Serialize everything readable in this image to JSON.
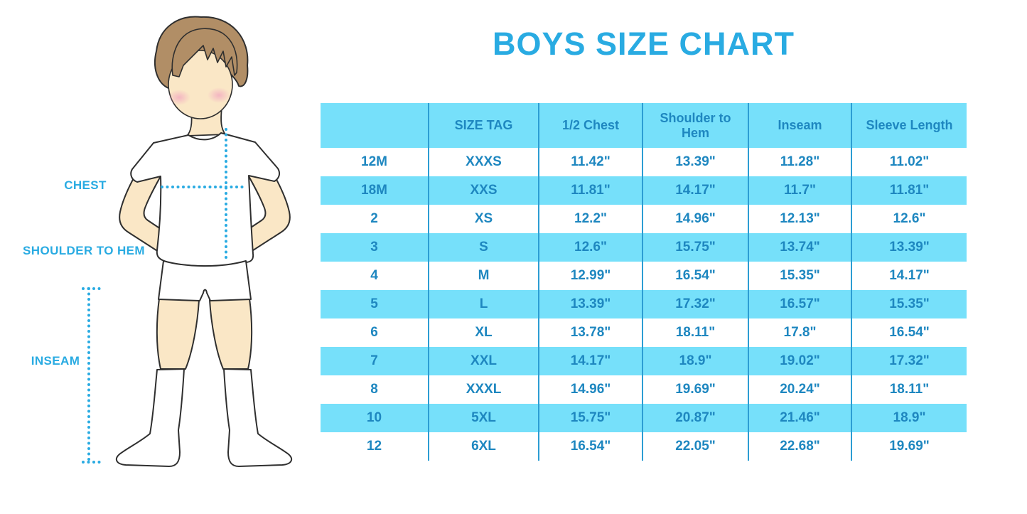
{
  "title": "BOYS SIZE CHART",
  "figure": {
    "description": "outlined illustration of a boy in white t-shirt, shorts and knee socks with dotted measurement guides",
    "labels": {
      "chest": "CHEST",
      "shoulder_to_hem": "SHOULDER TO HEM",
      "inseam": "INSEAM"
    }
  },
  "colors": {
    "title_blue": "#29ABE2",
    "band_blue": "#76E0FA",
    "divider_blue": "#2C9DD3",
    "table_text_blue": "#1E87C0",
    "dotted_line_blue": "#29ABE2",
    "skin": "#FAE7C6",
    "hair_brown": "#B18E66"
  },
  "chart_data": {
    "type": "table",
    "title": "BOYS SIZE CHART",
    "columns": [
      "",
      "SIZE TAG",
      "1/2 Chest",
      "Shoulder to Hem",
      "Inseam",
      "Sleeve Length"
    ],
    "rows": [
      [
        "12M",
        "XXXS",
        "11.42\"",
        "13.39\"",
        "11.28\"",
        "11.02\""
      ],
      [
        "18M",
        "XXS",
        "11.81\"",
        "14.17\"",
        "11.7\"",
        "11.81\""
      ],
      [
        "2",
        "XS",
        "12.2\"",
        "14.96\"",
        "12.13\"",
        "12.6\""
      ],
      [
        "3",
        "S",
        "12.6\"",
        "15.75\"",
        "13.74\"",
        "13.39\""
      ],
      [
        "4",
        "M",
        "12.99\"",
        "16.54\"",
        "15.35\"",
        "14.17\""
      ],
      [
        "5",
        "L",
        "13.39\"",
        "17.32\"",
        "16.57\"",
        "15.35\""
      ],
      [
        "6",
        "XL",
        "13.78\"",
        "18.11\"",
        "17.8\"",
        "16.54\""
      ],
      [
        "7",
        "XXL",
        "14.17\"",
        "18.9\"",
        "19.02\"",
        "17.32\""
      ],
      [
        "8",
        "XXXL",
        "14.96\"",
        "19.69\"",
        "20.24\"",
        "18.11\""
      ],
      [
        "10",
        "5XL",
        "15.75\"",
        "20.87\"",
        "21.46\"",
        "18.9\""
      ],
      [
        "12",
        "6XL",
        "16.54\"",
        "22.05\"",
        "22.68\"",
        "19.69\""
      ]
    ],
    "row_striping": "white / light-blue alternating, header light-blue",
    "grid": "vertical dividers only, no outer border"
  }
}
